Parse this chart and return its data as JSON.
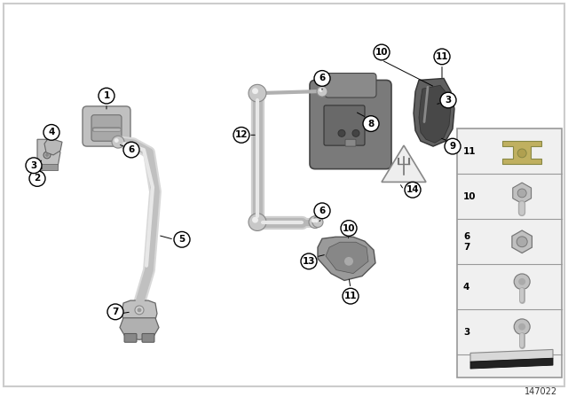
{
  "bg": "#ffffff",
  "diagram_id": "147022",
  "callout_fill": "#ffffff",
  "callout_edge": "#000000",
  "line_col": "#000000",
  "part_light": "#d8d8d8",
  "part_mid": "#b0b0b0",
  "part_dark": "#808080",
  "part_vdark": "#555555",
  "legend_bg": "#f0f0f0",
  "legend_border": "#999999",
  "rod_light": "#e8e8e8",
  "rod_mid": "#c0c0c0",
  "rod_dark": "#909090"
}
